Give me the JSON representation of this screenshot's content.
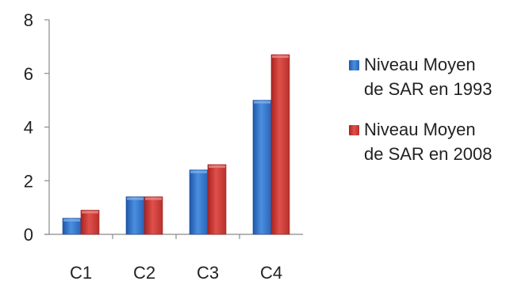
{
  "chart_data": {
    "type": "bar",
    "categories": [
      "C1",
      "C2",
      "C3",
      "C4"
    ],
    "series": [
      {
        "name": "Niveau Moyen de SAR en 1993",
        "values": [
          0.6,
          1.4,
          2.4,
          5.0
        ],
        "color": "#2e6fc9"
      },
      {
        "name": "Niveau Moyen de SAR en 2008",
        "values": [
          0.9,
          1.4,
          2.6,
          6.7
        ],
        "color": "#c9302c"
      }
    ],
    "yticks": [
      0,
      2,
      4,
      6,
      8
    ],
    "ylim": [
      0,
      8
    ],
    "grid": false,
    "legend_position": "right"
  }
}
